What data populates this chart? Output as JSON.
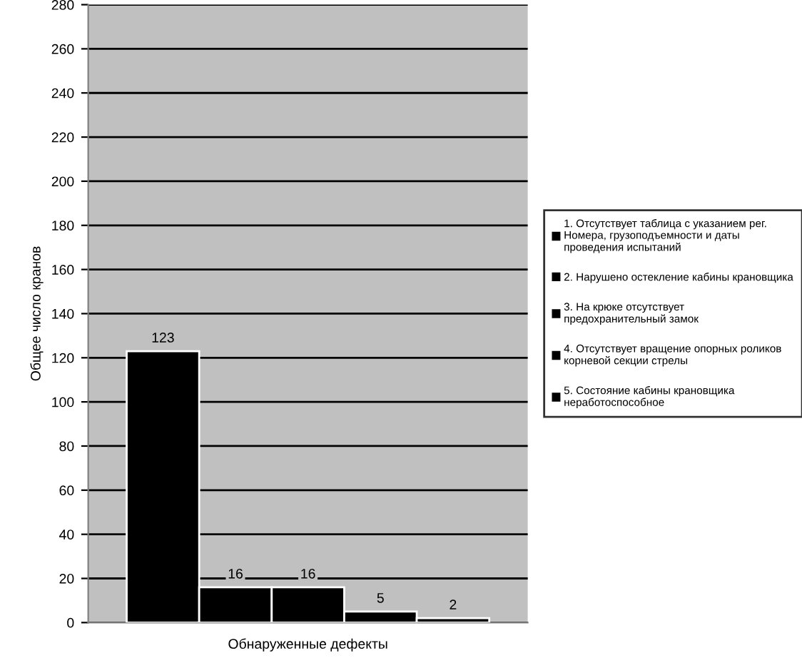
{
  "chart_data": {
    "type": "bar",
    "categories": [
      "Обнаруженные дефекты"
    ],
    "ylabel": "Общее число кранов",
    "ylim": [
      0,
      280
    ],
    "yticks": [
      0,
      20,
      40,
      60,
      80,
      100,
      120,
      140,
      160,
      180,
      200,
      220,
      240,
      260,
      280
    ],
    "grid": "y",
    "legend": "right",
    "data_labels": true,
    "series": [
      {
        "name": "1. Отсутствует таблица с указанием рег. Номера, грузоподъемности и даты проведения испытаний",
        "color": "#000000",
        "values": [
          123
        ]
      },
      {
        "name": "2. Нарушено остекление кабины крановщика",
        "color": "#000000",
        "values": [
          16
        ]
      },
      {
        "name": "3. На крюке отсутствует предохранительный замок",
        "color": "#000000",
        "values": [
          16
        ]
      },
      {
        "name": "4. Отсутствует вращение опорных роликов корневой секции стрелы",
        "color": "#000000",
        "values": [
          5
        ]
      },
      {
        "name": "5. Состояние кабины крановщика неработоспособное",
        "color": "#000000",
        "values": [
          2
        ]
      }
    ]
  }
}
